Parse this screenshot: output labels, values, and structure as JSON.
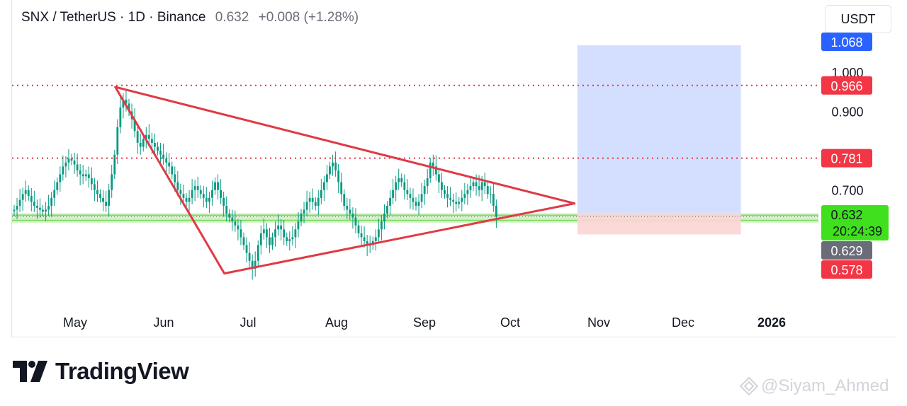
{
  "header": {
    "symbol": "SNX / TetherUS · 1D · Binance",
    "price": "0.632",
    "change": "+0.008 (+1.28%)",
    "currency_button": "USDT"
  },
  "brand": {
    "name": "TradingView",
    "watermark": "@Siyam_Ahmed"
  },
  "colors": {
    "up": "#089981",
    "down": "#f23645",
    "candle": "#089981",
    "triangle": "#e03a45",
    "level_line": "#e03a45",
    "support_zone": "#7ddb5e",
    "target_zone": "#cfdcff",
    "stop_zone": "#fcd5d5"
  },
  "chart_data": {
    "type": "candlestick",
    "x_axis": {
      "labels": [
        "May",
        "Jun",
        "Jul",
        "Aug",
        "Sep",
        "Oct",
        "Nov",
        "Dec",
        "2026"
      ]
    },
    "y_axis": {
      "scale": "linear",
      "ticks": [
        0.7,
        0.9,
        1.0
      ],
      "range": [
        0.44,
        1.12
      ]
    },
    "price_labels": [
      {
        "value": "1.068",
        "color": "#2962ff"
      },
      {
        "value": "0.966",
        "color": "#f23645"
      },
      {
        "value": "0.781",
        "color": "#f23645"
      },
      {
        "value": "0.632",
        "sub": "20:24:39",
        "color": "#40e01e"
      },
      {
        "value": "0.629",
        "color": "#6a6d78"
      },
      {
        "value": "0.578",
        "color": "#f23645"
      }
    ],
    "horizontal_levels": [
      0.966,
      0.781
    ],
    "support_zone": [
      0.617,
      0.641
    ],
    "triangle": {
      "top_start": {
        "date": "2025-05-15",
        "price": 0.962
      },
      "bottom_start": {
        "date": "2025-06-22",
        "price": 0.488
      },
      "apex": {
        "date": "2025-10-22",
        "price": 0.666
      }
    },
    "position_box": {
      "from": "2025-10-23",
      "to": "2025-12-19",
      "entry": 0.641,
      "target": 1.068,
      "stop": 0.587
    },
    "series": [
      {
        "closes": [
          0.65,
          0.66,
          0.675,
          0.69,
          0.7,
          0.685,
          0.67,
          0.66,
          0.655,
          0.65,
          0.645,
          0.65,
          0.66,
          0.68,
          0.7,
          0.72,
          0.74,
          0.76,
          0.77,
          0.78,
          0.775,
          0.765,
          0.75,
          0.74,
          0.735,
          0.74,
          0.73,
          0.715,
          0.7,
          0.69,
          0.68,
          0.67,
          0.66,
          0.7,
          0.74,
          0.79,
          0.86,
          0.91,
          0.93,
          0.92,
          0.9,
          0.88,
          0.85,
          0.82,
          0.81,
          0.83,
          0.84,
          0.83,
          0.82,
          0.81,
          0.8,
          0.79,
          0.78,
          0.77,
          0.76,
          0.74,
          0.72,
          0.7,
          0.69,
          0.68,
          0.67,
          0.68,
          0.7,
          0.71,
          0.7,
          0.69,
          0.68,
          0.67,
          0.68,
          0.7,
          0.72,
          0.7,
          0.68,
          0.66,
          0.64,
          0.63,
          0.62,
          0.61,
          0.6,
          0.58,
          0.56,
          0.54,
          0.52,
          0.5,
          0.52,
          0.56,
          0.59,
          0.6,
          0.58,
          0.56,
          0.58,
          0.6,
          0.61,
          0.6,
          0.58,
          0.57,
          0.575,
          0.58,
          0.6,
          0.62,
          0.64,
          0.65,
          0.67,
          0.68,
          0.67,
          0.66,
          0.68,
          0.7,
          0.72,
          0.74,
          0.76,
          0.77,
          0.75,
          0.72,
          0.69,
          0.66,
          0.65,
          0.64,
          0.63,
          0.61,
          0.59,
          0.58,
          0.57,
          0.56,
          0.56,
          0.57,
          0.58,
          0.6,
          0.62,
          0.64,
          0.66,
          0.68,
          0.7,
          0.72,
          0.73,
          0.72,
          0.7,
          0.69,
          0.68,
          0.67,
          0.66,
          0.67,
          0.69,
          0.71,
          0.73,
          0.77,
          0.76,
          0.74,
          0.72,
          0.7,
          0.69,
          0.68,
          0.675,
          0.67,
          0.665,
          0.67,
          0.68,
          0.69,
          0.7,
          0.71,
          0.72,
          0.71,
          0.7,
          0.72,
          0.71,
          0.69,
          0.69,
          0.66,
          0.632
        ]
      }
    ]
  }
}
